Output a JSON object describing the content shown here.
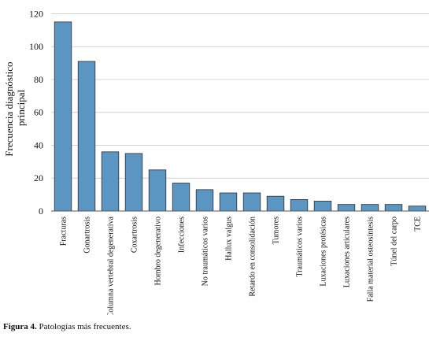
{
  "chart_data": {
    "type": "bar",
    "ylabel_lines": [
      "Frecuencia diagnóstico",
      "principal"
    ],
    "xlabel": "",
    "ylim": [
      0,
      125
    ],
    "yticks": [
      0,
      20,
      40,
      60,
      80,
      100,
      120
    ],
    "grid": true,
    "bar_color": "#5b96c2",
    "categories": [
      "Fracturas",
      "Gonartrosis",
      "Columna vertebral degenerativa",
      "Coxartrosis",
      "Hombro degenerativo",
      "Infecciones",
      "No traumáticos varios",
      "Hallux valgus",
      "Retardo en consolidación",
      "Tumores",
      "Traumáticos varios",
      "Luxaciones protésicas",
      "Luxaciones articulares",
      "Falla material osteosíntesis",
      "Túnel del carpo",
      "TCE"
    ],
    "values": [
      115,
      91,
      36,
      35,
      25,
      17,
      13,
      11,
      11,
      9,
      7,
      6,
      4,
      4,
      4,
      3
    ]
  },
  "caption": {
    "label": "Figura 4.",
    "text": " Patologías más frecuentes."
  }
}
